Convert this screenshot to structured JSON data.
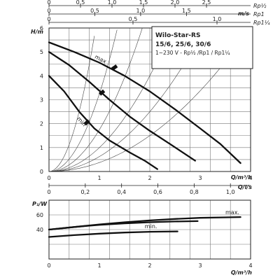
{
  "top_scales": {
    "unit_label": "m/s",
    "rows": [
      {
        "label": "Rp½",
        "ticks": [
          {
            "v": "0",
            "x": 0
          },
          {
            "v": "0,5",
            "x": 0.5
          },
          {
            "v": "1,0",
            "x": 1.0
          },
          {
            "v": "1,5",
            "x": 1.5
          },
          {
            "v": "2,0",
            "x": 2.0
          },
          {
            "v": "2,5",
            "x": 2.5
          }
        ],
        "speed_per_m3h": 0.8
      },
      {
        "label": "Rp1",
        "ticks": [
          {
            "v": "0",
            "x": 0
          },
          {
            "v": "0,5",
            "x": 0.5
          },
          {
            "v": "1,0",
            "x": 1.0
          },
          {
            "v": "1,5",
            "x": 1.5
          }
        ],
        "speed_per_m3h": 0.55
      },
      {
        "label": "Rp1¼",
        "ticks": [
          {
            "v": "0",
            "x": 0
          },
          {
            "v": "0,5",
            "x": 0.5
          },
          {
            "v": "1,0",
            "x": 1.0
          }
        ],
        "speed_per_m3h": 0.3
      }
    ]
  },
  "info_box": {
    "title_line1": "Wilo-Star-RS",
    "title_line2": "15/6, 25/6, 30/6",
    "subtitle": "1~230 V - Rp½ /Rp1 / Rp1¼"
  },
  "chart_data": [
    {
      "type": "line",
      "title": "",
      "xlabel": "Q/m³/h",
      "xlabel2": "Q/l/s",
      "ylabel": "H/m",
      "xlim": [
        0,
        4
      ],
      "ylim": [
        0,
        6
      ],
      "x_ticks": [
        "0",
        "1",
        "2",
        "3",
        "4"
      ],
      "y_ticks": [
        "0",
        "1",
        "2",
        "3",
        "4",
        "5",
        "6"
      ],
      "x2_ticks": [
        "0",
        "0,2",
        "0,4",
        "0,6",
        "0,8",
        "1,0"
      ],
      "grid": true,
      "series": [
        {
          "name": "max",
          "x": [
            0,
            0.5,
            1.0,
            1.5,
            2.0,
            2.5,
            3.0,
            3.4,
            3.8
          ],
          "y": [
            5.4,
            5.0,
            4.55,
            4.0,
            3.35,
            2.6,
            1.8,
            1.15,
            0.35
          ]
        },
        {
          "name": "",
          "x": [
            0,
            0.4,
            0.8,
            1.2,
            1.6,
            2.0,
            2.4,
            2.9
          ],
          "y": [
            5.0,
            4.45,
            3.75,
            3.0,
            2.3,
            1.7,
            1.15,
            0.45
          ]
        },
        {
          "name": "min",
          "x": [
            0,
            0.3,
            0.6,
            0.9,
            1.2,
            1.6,
            1.9,
            2.15
          ],
          "y": [
            4.0,
            3.35,
            2.5,
            1.8,
            1.3,
            0.8,
            0.45,
            0.1
          ]
        }
      ]
    },
    {
      "type": "line",
      "title": "",
      "xlabel": "Q/m³/h",
      "ylabel": "P₁/W",
      "xlim": [
        0,
        4
      ],
      "ylim": [
        0,
        80
      ],
      "x_ticks": [
        "0",
        "1",
        "2",
        "3",
        "4"
      ],
      "y_ticks": [
        "40",
        "60"
      ],
      "grid": true,
      "series": [
        {
          "name": "max.",
          "x": [
            0,
            0.5,
            1.0,
            1.5,
            2.0,
            2.5,
            3.0,
            3.8
          ],
          "y": [
            40,
            43.5,
            47,
            50,
            52.5,
            54.5,
            56,
            57
          ]
        },
        {
          "name": "",
          "x": [
            0,
            0.5,
            1.0,
            1.5,
            2.0,
            2.5,
            2.95
          ],
          "y": [
            40,
            43.5,
            46.5,
            48.5,
            50,
            51,
            51.5
          ]
        },
        {
          "name": "min.",
          "x": [
            0,
            0.5,
            1.0,
            1.5,
            2.0,
            2.55
          ],
          "y": [
            30,
            32.5,
            34.5,
            36,
            37,
            37.5
          ]
        }
      ]
    }
  ]
}
